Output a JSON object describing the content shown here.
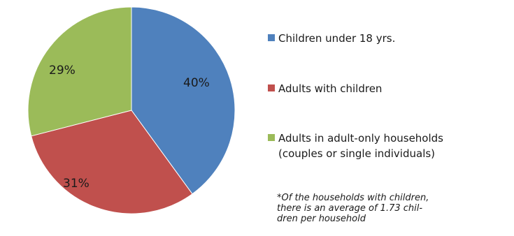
{
  "chart_data": {
    "type": "pie",
    "slices": [
      {
        "name": "Children under 18 yrs.",
        "value": 40,
        "label": "40%",
        "color": "#4f81bd"
      },
      {
        "name": "Adults with children",
        "value": 31,
        "label": "31%",
        "color": "#c0504d"
      },
      {
        "name": "Adults in adult-only households",
        "name_line2": "(couples or single individuals)",
        "value": 29,
        "label": "29%",
        "color": "#9bbb59"
      }
    ],
    "legend": "right"
  },
  "footnote": {
    "line1": "*Of the households with children,",
    "line2": "there is an average of 1.73 chil-",
    "line3": "dren per household"
  }
}
